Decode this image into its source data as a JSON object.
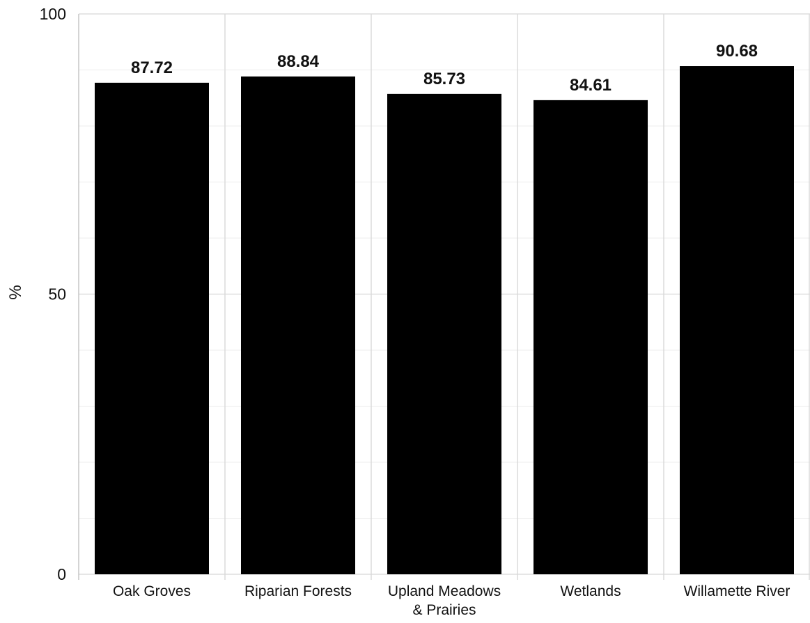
{
  "chart_data": {
    "type": "bar",
    "title": "",
    "xlabel": "",
    "ylabel": "%",
    "ylim": [
      0,
      100
    ],
    "yticks": [
      0,
      50,
      100
    ],
    "grid": true,
    "legend": "none",
    "categories": [
      [
        "Oak Groves"
      ],
      [
        "Riparian Forests"
      ],
      [
        "Upland Meadows",
        "& Prairies"
      ],
      [
        "Wetlands"
      ],
      [
        "Willamette River"
      ]
    ],
    "values": [
      87.72,
      88.84,
      85.73,
      84.61,
      90.68
    ],
    "value_labels": [
      "87.72",
      "88.84",
      "85.73",
      "84.61",
      "90.68"
    ],
    "colors": {
      "bar": "#000000",
      "grid_major": "#d6d6d6",
      "grid_minor": "#ececec",
      "axis": "#bdbdbd",
      "background": "#ffffff"
    }
  }
}
